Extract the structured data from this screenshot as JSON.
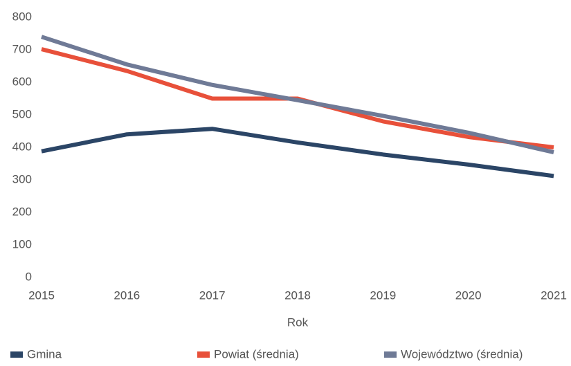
{
  "chart_data": {
    "type": "line",
    "x_label": "Rok",
    "categories": [
      "2015",
      "2016",
      "2017",
      "2018",
      "2019",
      "2020",
      "2021"
    ],
    "series": [
      {
        "name": "Gmina",
        "color": "#2b4566",
        "values": [
          388,
          440,
          457,
          415,
          378,
          347,
          312
        ]
      },
      {
        "name": "Powiat (średnia)",
        "color": "#e8503a",
        "values": [
          702,
          635,
          550,
          550,
          480,
          432,
          400
        ]
      },
      {
        "name": "Województwo (średnia)",
        "color": "#6f7a96",
        "values": [
          740,
          655,
          592,
          545,
          497,
          445,
          385
        ]
      }
    ],
    "ylim": [
      0,
      800
    ],
    "yticks": [
      0,
      100,
      200,
      300,
      400,
      500,
      600,
      700,
      800
    ],
    "grid": false
  }
}
